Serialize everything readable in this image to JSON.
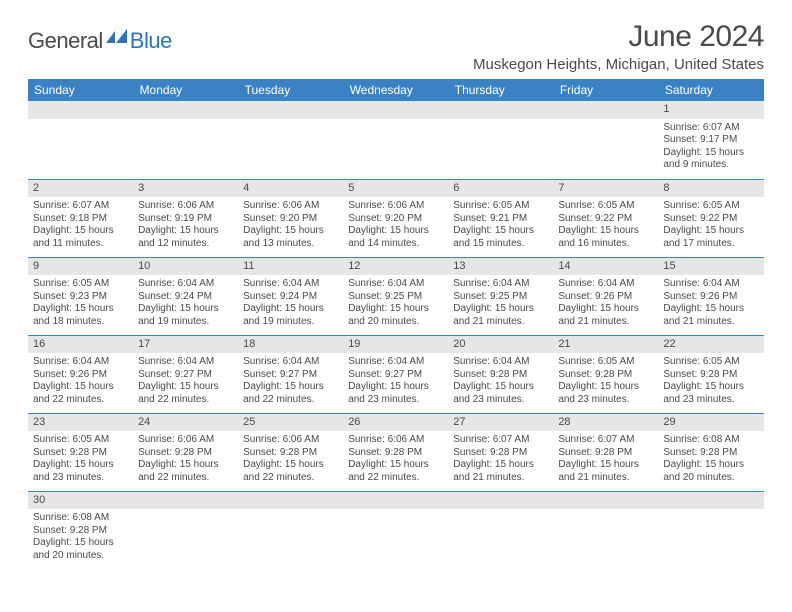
{
  "logo": {
    "text1": "General",
    "text2": "Blue",
    "mark_color": "#2f73b6"
  },
  "title": "June 2024",
  "location": "Muskegon Heights, Michigan, United States",
  "colors": {
    "header_bg": "#3b82c4",
    "header_text": "#ffffff",
    "row_border": "#3b82c4",
    "daynum_bg": "#e6e6e6",
    "text": "#4a4a4a"
  },
  "dayNames": [
    "Sunday",
    "Monday",
    "Tuesday",
    "Wednesday",
    "Thursday",
    "Friday",
    "Saturday"
  ],
  "weeks": [
    [
      {
        "empty": true
      },
      {
        "empty": true
      },
      {
        "empty": true
      },
      {
        "empty": true
      },
      {
        "empty": true
      },
      {
        "empty": true
      },
      {
        "n": "1",
        "sunrise": "6:07 AM",
        "sunset": "9:17 PM",
        "daylight": "15 hours and 9 minutes."
      }
    ],
    [
      {
        "n": "2",
        "sunrise": "6:07 AM",
        "sunset": "9:18 PM",
        "daylight": "15 hours and 11 minutes."
      },
      {
        "n": "3",
        "sunrise": "6:06 AM",
        "sunset": "9:19 PM",
        "daylight": "15 hours and 12 minutes."
      },
      {
        "n": "4",
        "sunrise": "6:06 AM",
        "sunset": "9:20 PM",
        "daylight": "15 hours and 13 minutes."
      },
      {
        "n": "5",
        "sunrise": "6:06 AM",
        "sunset": "9:20 PM",
        "daylight": "15 hours and 14 minutes."
      },
      {
        "n": "6",
        "sunrise": "6:05 AM",
        "sunset": "9:21 PM",
        "daylight": "15 hours and 15 minutes."
      },
      {
        "n": "7",
        "sunrise": "6:05 AM",
        "sunset": "9:22 PM",
        "daylight": "15 hours and 16 minutes."
      },
      {
        "n": "8",
        "sunrise": "6:05 AM",
        "sunset": "9:22 PM",
        "daylight": "15 hours and 17 minutes."
      }
    ],
    [
      {
        "n": "9",
        "sunrise": "6:05 AM",
        "sunset": "9:23 PM",
        "daylight": "15 hours and 18 minutes."
      },
      {
        "n": "10",
        "sunrise": "6:04 AM",
        "sunset": "9:24 PM",
        "daylight": "15 hours and 19 minutes."
      },
      {
        "n": "11",
        "sunrise": "6:04 AM",
        "sunset": "9:24 PM",
        "daylight": "15 hours and 19 minutes."
      },
      {
        "n": "12",
        "sunrise": "6:04 AM",
        "sunset": "9:25 PM",
        "daylight": "15 hours and 20 minutes."
      },
      {
        "n": "13",
        "sunrise": "6:04 AM",
        "sunset": "9:25 PM",
        "daylight": "15 hours and 21 minutes."
      },
      {
        "n": "14",
        "sunrise": "6:04 AM",
        "sunset": "9:26 PM",
        "daylight": "15 hours and 21 minutes."
      },
      {
        "n": "15",
        "sunrise": "6:04 AM",
        "sunset": "9:26 PM",
        "daylight": "15 hours and 21 minutes."
      }
    ],
    [
      {
        "n": "16",
        "sunrise": "6:04 AM",
        "sunset": "9:26 PM",
        "daylight": "15 hours and 22 minutes."
      },
      {
        "n": "17",
        "sunrise": "6:04 AM",
        "sunset": "9:27 PM",
        "daylight": "15 hours and 22 minutes."
      },
      {
        "n": "18",
        "sunrise": "6:04 AM",
        "sunset": "9:27 PM",
        "daylight": "15 hours and 22 minutes."
      },
      {
        "n": "19",
        "sunrise": "6:04 AM",
        "sunset": "9:27 PM",
        "daylight": "15 hours and 23 minutes."
      },
      {
        "n": "20",
        "sunrise": "6:04 AM",
        "sunset": "9:28 PM",
        "daylight": "15 hours and 23 minutes."
      },
      {
        "n": "21",
        "sunrise": "6:05 AM",
        "sunset": "9:28 PM",
        "daylight": "15 hours and 23 minutes."
      },
      {
        "n": "22",
        "sunrise": "6:05 AM",
        "sunset": "9:28 PM",
        "daylight": "15 hours and 23 minutes."
      }
    ],
    [
      {
        "n": "23",
        "sunrise": "6:05 AM",
        "sunset": "9:28 PM",
        "daylight": "15 hours and 23 minutes."
      },
      {
        "n": "24",
        "sunrise": "6:06 AM",
        "sunset": "9:28 PM",
        "daylight": "15 hours and 22 minutes."
      },
      {
        "n": "25",
        "sunrise": "6:06 AM",
        "sunset": "9:28 PM",
        "daylight": "15 hours and 22 minutes."
      },
      {
        "n": "26",
        "sunrise": "6:06 AM",
        "sunset": "9:28 PM",
        "daylight": "15 hours and 22 minutes."
      },
      {
        "n": "27",
        "sunrise": "6:07 AM",
        "sunset": "9:28 PM",
        "daylight": "15 hours and 21 minutes."
      },
      {
        "n": "28",
        "sunrise": "6:07 AM",
        "sunset": "9:28 PM",
        "daylight": "15 hours and 21 minutes."
      },
      {
        "n": "29",
        "sunrise": "6:08 AM",
        "sunset": "9:28 PM",
        "daylight": "15 hours and 20 minutes."
      }
    ],
    [
      {
        "n": "30",
        "sunrise": "6:08 AM",
        "sunset": "9:28 PM",
        "daylight": "15 hours and 20 minutes."
      },
      {
        "empty": true
      },
      {
        "empty": true
      },
      {
        "empty": true
      },
      {
        "empty": true
      },
      {
        "empty": true
      },
      {
        "empty": true
      }
    ]
  ],
  "labels": {
    "sunrise": "Sunrise:",
    "sunset": "Sunset:",
    "daylight": "Daylight:"
  }
}
